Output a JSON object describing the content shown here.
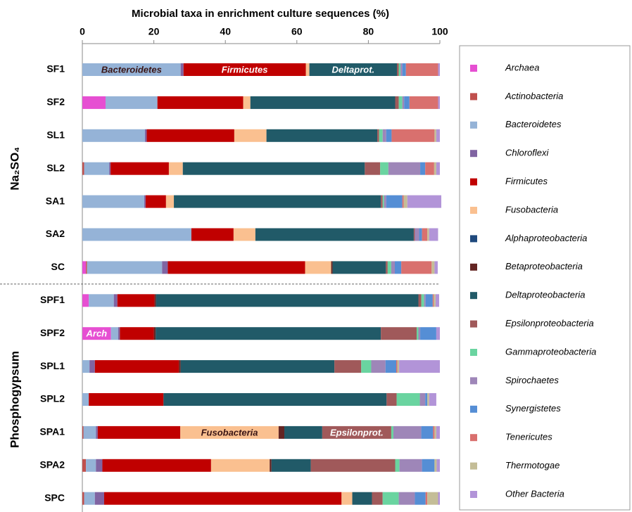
{
  "chart_data": {
    "type": "stacked_barh",
    "title": "Microbial taxa in enrichment culture sequences (%)",
    "categories": [
      "SF1",
      "SF2",
      "SL1",
      "SL2",
      "SA1",
      "SA2",
      "SC",
      "SPF1",
      "SPF2",
      "SPL1",
      "SPL2",
      "SPA1",
      "SPA2",
      "SPC"
    ],
    "groups": [
      {
        "label": "Na₂SO₄",
        "categories": [
          "SF1",
          "SF2",
          "SL1",
          "SL2",
          "SA1",
          "SA2",
          "SC"
        ]
      },
      {
        "label": "Phosphogypsum",
        "categories": [
          "SPF1",
          "SPF2",
          "SPL1",
          "SPL2",
          "SPA1",
          "SPA2",
          "SPC"
        ]
      }
    ],
    "xlim": [
      0,
      100
    ],
    "xticks": [
      0,
      20,
      40,
      60,
      80,
      100
    ],
    "series": [
      {
        "name": "Archaea",
        "color": "#e64fd2",
        "values": [
          0,
          6.5,
          0,
          0,
          0,
          0,
          1,
          1.8,
          8,
          0,
          0,
          0,
          0,
          0
        ]
      },
      {
        "name": "Actinobacteria",
        "color": "#c0504d",
        "values": [
          0,
          0,
          0,
          0.5,
          0,
          0,
          0.3,
          0,
          0,
          0,
          0,
          0.3,
          1,
          0.5
        ]
      },
      {
        "name": "Bacteroidetes",
        "color": "#95b3d7",
        "values": [
          27.5,
          14.5,
          17.5,
          7,
          17.3,
          30.5,
          21,
          7,
          2,
          2,
          1.8,
          3.5,
          2.8,
          3
        ]
      },
      {
        "name": "Chloroflexi",
        "color": "#8064a2",
        "values": [
          0.8,
          0,
          0.5,
          0.4,
          0.4,
          0,
          1.6,
          1,
          0.5,
          1.5,
          0,
          0.5,
          1.8,
          2.6
        ]
      },
      {
        "name": "Firmicutes",
        "color": "#c00000",
        "values": [
          34.2,
          24,
          24.5,
          16.3,
          5.7,
          11.8,
          38.4,
          10.4,
          9.5,
          23.5,
          20.9,
          23.1,
          30.4,
          66.4
        ]
      },
      {
        "name": "Fusobacteria",
        "color": "#fac090",
        "values": [
          1,
          2,
          9,
          3.9,
          2.2,
          6.1,
          7.3,
          0,
          0,
          0,
          0,
          27.5,
          16.4,
          3
        ]
      },
      {
        "name": "Alphaproteobacteria",
        "color": "#1f497d",
        "values": [
          0,
          0,
          0,
          0,
          0,
          0,
          0,
          0,
          0,
          0,
          0,
          0,
          0,
          0
        ]
      },
      {
        "name": "Betaproteobacteria",
        "color": "#632523",
        "values": [
          0,
          0,
          0,
          0,
          0,
          0,
          0.4,
          0.4,
          0.5,
          0.5,
          0,
          1.6,
          0.5,
          0
        ]
      },
      {
        "name": "Deltaproteobacteria",
        "color": "#215a68",
        "values": [
          24.5,
          40.5,
          31,
          50.9,
          57.9,
          44.3,
          14.9,
          73.4,
          63,
          43,
          62.4,
          10.6,
          11,
          5.5
        ]
      },
      {
        "name": "Epsilonproteobacteria",
        "color": "#a0595a",
        "values": [
          0.5,
          1,
          0.5,
          4.3,
          0.5,
          0.3,
          0.5,
          0.8,
          10,
          7.5,
          2.8,
          19.3,
          23.6,
          3
        ]
      },
      {
        "name": "Gammaproteobacteria",
        "color": "#6ad4a0",
        "values": [
          0.5,
          1,
          1,
          2.3,
          0.4,
          0,
          1,
          0.8,
          0.5,
          2.8,
          6.5,
          0.6,
          1.2,
          4.5
        ]
      },
      {
        "name": "Spirochaetes",
        "color": "#9e86b8",
        "values": [
          0.5,
          0.5,
          1,
          8.9,
          0.6,
          1.2,
          1,
          0.4,
          0.5,
          4,
          1.5,
          7.8,
          6.3,
          4.5
        ]
      },
      {
        "name": "Synergistetes",
        "color": "#558ed5",
        "values": [
          1,
          1.5,
          1.5,
          1.4,
          4.5,
          0.8,
          1.8,
          2,
          4.5,
          3,
          0.6,
          3.3,
          3.5,
          3
        ]
      },
      {
        "name": "Tenericutes",
        "color": "#d9706e",
        "values": [
          9,
          8,
          12,
          2.5,
          0.4,
          1.5,
          8.5,
          0.3,
          0,
          0.3,
          0,
          0.4,
          0,
          0.5
        ]
      },
      {
        "name": "Thermotogae",
        "color": "#c4bd97",
        "values": [
          0,
          0,
          0.5,
          0.6,
          1,
          0.5,
          0.8,
          0.5,
          0,
          0.5,
          0.5,
          0.5,
          0.6,
          3
        ]
      },
      {
        "name": "Other Bacteria",
        "color": "#b294d8",
        "values": [
          0.5,
          0.5,
          1,
          1,
          9.5,
          2.5,
          0.9,
          1,
          1,
          11.4,
          2,
          1,
          0.9,
          0.5
        ]
      }
    ],
    "annotations": [
      {
        "label": "Bacteroidetes",
        "bar": "SF1"
      },
      {
        "label": "Firmicutes",
        "bar": "SF1"
      },
      {
        "label": "Deltaprot.",
        "bar": "SF1"
      },
      {
        "label": "Arch",
        "bar": "SPF2"
      },
      {
        "label": "Fusobacteria",
        "bar": "SPA1"
      },
      {
        "label": "Epsilonprot.",
        "bar": "SPA1"
      }
    ],
    "legend": "right"
  }
}
